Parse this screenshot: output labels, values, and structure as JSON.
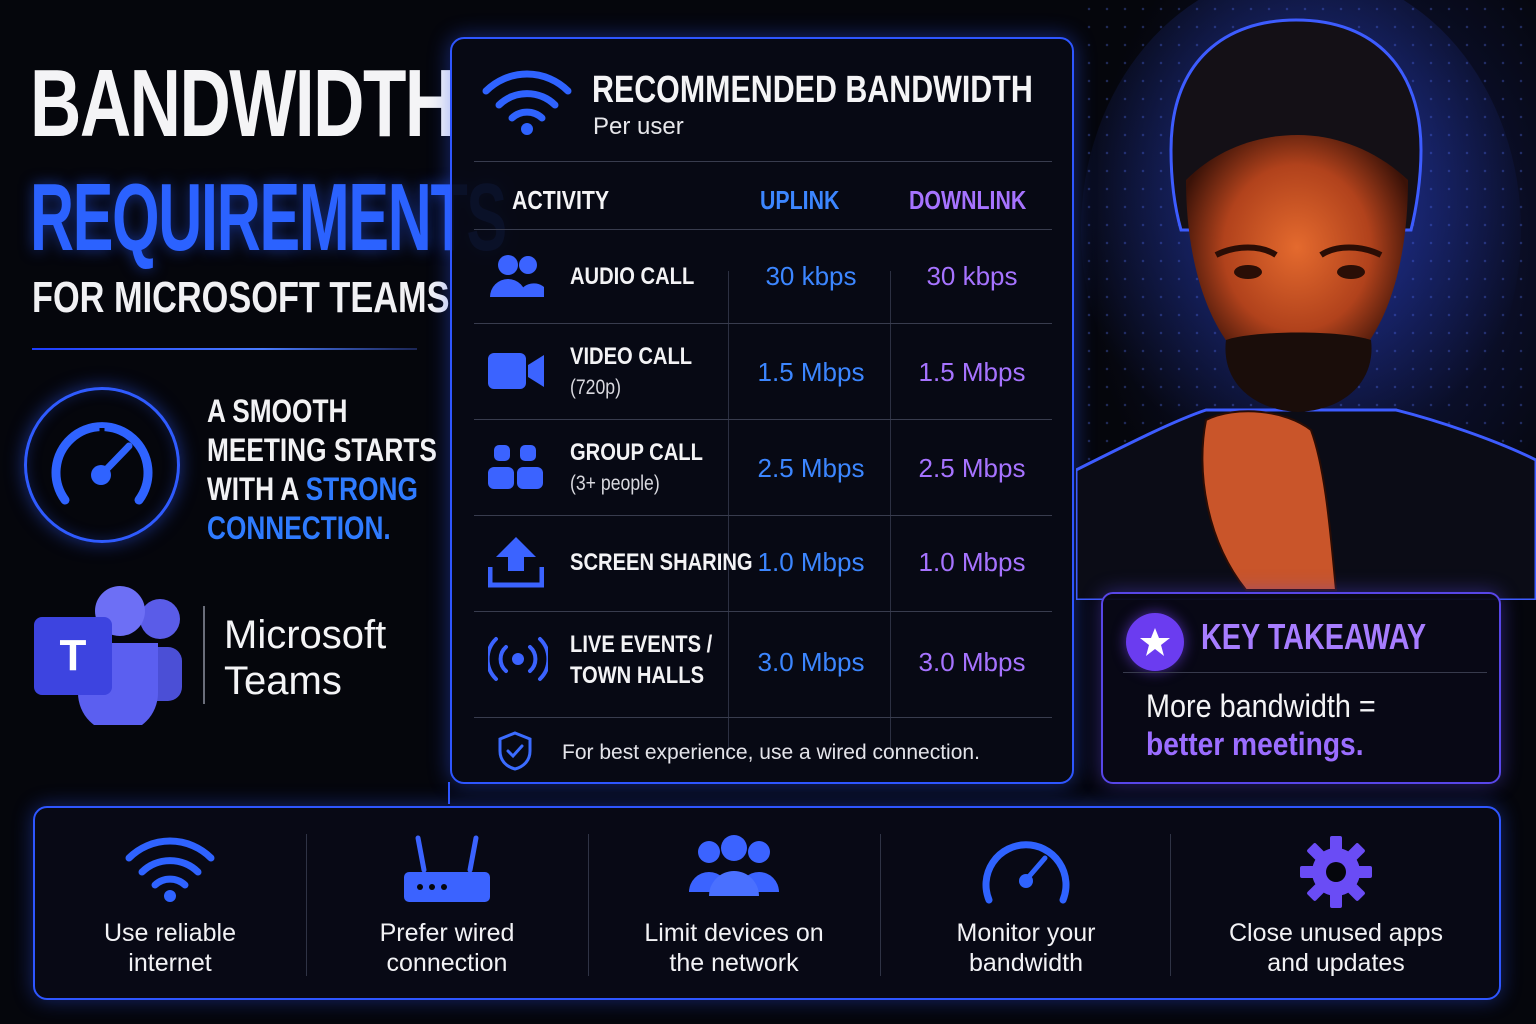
{
  "header": {
    "line1": "BANDWIDTH",
    "line2": "REQUIREMENTS",
    "line3": "FOR MICROSOFT TEAMS"
  },
  "tagline": {
    "part1": "A SMOOTH MEETING STARTS WITH A ",
    "highlight": "STRONG CONNECTION."
  },
  "brand": {
    "name_line1": "Microsoft",
    "name_line2": "Teams",
    "logo_letter": "T"
  },
  "table": {
    "title": "RECOMMENDED BANDWIDTH",
    "subtitle": "Per user",
    "col_activity": "ACTIVITY",
    "col_uplink": "UPLINK",
    "col_downlink": "DOWNLINK",
    "rows": [
      {
        "label": "AUDIO CALL",
        "sub": "",
        "uplink": "30 kbps",
        "downlink": "30 kbps",
        "icon": "users-icon"
      },
      {
        "label": "VIDEO CALL",
        "sub": "(720p)",
        "uplink": "1.5 Mbps",
        "downlink": "1.5 Mbps",
        "icon": "video-camera-icon"
      },
      {
        "label": "GROUP CALL",
        "sub": "(3+ people)",
        "uplink": "2.5 Mbps",
        "downlink": "2.5 Mbps",
        "icon": "group-icon"
      },
      {
        "label": "SCREEN SHARING",
        "sub": "",
        "uplink": "1.0 Mbps",
        "downlink": "1.0 Mbps",
        "icon": "upload-icon"
      },
      {
        "label": "LIVE EVENTS /",
        "sub": "TOWN HALLS",
        "uplink": "3.0 Mbps",
        "downlink": "3.0 Mbps",
        "icon": "broadcast-icon"
      }
    ],
    "footnote": "For best experience, use a wired connection."
  },
  "takeaway": {
    "title": "KEY TAKEAWAY",
    "line1": "More bandwidth =",
    "line2": "better meetings."
  },
  "tips": [
    {
      "label": "Use reliable\ninternet",
      "icon": "wifi-icon"
    },
    {
      "label": "Prefer wired\nconnection",
      "icon": "router-icon"
    },
    {
      "label": "Limit devices on\nthe network",
      "icon": "group-icon"
    },
    {
      "label": "Monitor your\nbandwidth",
      "icon": "speedometer-icon"
    },
    {
      "label": "Close unused apps\nand updates",
      "icon": "gear-icon"
    }
  ],
  "colors": {
    "accent_blue": "#2e56ff",
    "uplink": "#3c86ff",
    "downlink": "#a673ff",
    "takeaway": "#a77dff"
  }
}
